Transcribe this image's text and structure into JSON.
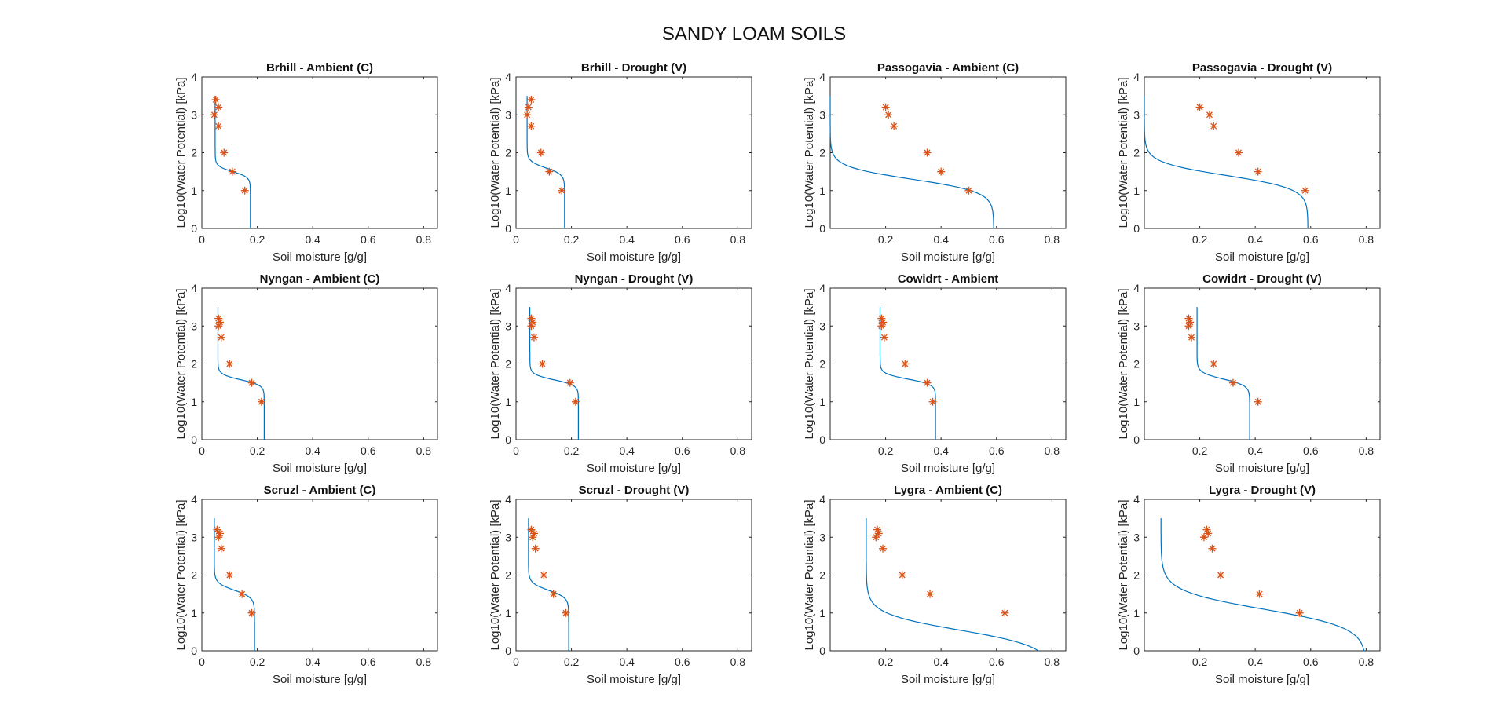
{
  "figure": {
    "title": "SANDY LOAM SOILS"
  },
  "style": {
    "fit_color": "#0072BD",
    "obs_color": "#D95319",
    "obs_marker": "asterisk",
    "grid": false
  },
  "chart_data": [
    {
      "type": "scatter",
      "title": "Brhill - Ambient (C)",
      "xlabel": "Soil moisture [g/g]",
      "ylabel": "Log10(Water Potential) [kPa]",
      "xlim": [
        0,
        0.85
      ],
      "ylim": [
        0,
        4
      ],
      "xticks": [
        "0",
        "0.2",
        "0.4",
        "0.6",
        "0.8"
      ],
      "yticks": [
        "0",
        "1",
        "2",
        "3",
        "4"
      ],
      "fit": {
        "theta_r": 0.048,
        "theta_s": 0.175,
        "h0": 1.5,
        "n": 6
      },
      "observed": {
        "x": [
          0.05,
          0.06,
          0.045,
          0.06,
          0.08,
          0.11,
          0.155
        ],
        "y": [
          3.4,
          3.2,
          3.0,
          2.7,
          2.0,
          1.5,
          1.0
        ]
      }
    },
    {
      "type": "scatter",
      "title": "Brhill - Drought (V)",
      "xlabel": "Soil moisture [g/g]",
      "ylabel": "Log10(Water Potential) [kPa]",
      "xlim": [
        0,
        0.85
      ],
      "ylim": [
        0,
        4
      ],
      "xticks": [
        "0",
        "0.2",
        "0.4",
        "0.6",
        "0.8"
      ],
      "yticks": [
        "0",
        "1",
        "2",
        "3",
        "4"
      ],
      "fit": {
        "theta_r": 0.04,
        "theta_s": 0.175,
        "h0": 1.6,
        "n": 5
      },
      "observed": {
        "x": [
          0.055,
          0.045,
          0.04,
          0.055,
          0.09,
          0.12,
          0.165
        ],
        "y": [
          3.4,
          3.2,
          3.0,
          2.7,
          2.0,
          1.5,
          1.0
        ]
      }
    },
    {
      "type": "scatter",
      "title": "Passogavia - Ambient (C)",
      "xlabel": "Soil moisture [g/g]",
      "ylabel": "Log10(Water Potential) [kPa]",
      "xlim": [
        0,
        0.85
      ],
      "ylim": [
        0,
        4
      ],
      "xticks": [
        "0.2",
        "0.4",
        "0.6",
        "0.8"
      ],
      "yticks": [
        "0",
        "1",
        "2",
        "3",
        "4"
      ],
      "fit": {
        "theta_r": 0.0,
        "theta_s": 0.59,
        "h0": 1.3,
        "n": 2.6
      },
      "observed": {
        "x": [
          0.2,
          0.21,
          0.23,
          0.35,
          0.4,
          0.5
        ],
        "y": [
          3.2,
          3.0,
          2.7,
          2.0,
          1.5,
          1.0
        ]
      }
    },
    {
      "type": "scatter",
      "title": "Passogavia - Drought (V)",
      "xlabel": "Soil moisture [g/g]",
      "ylabel": "Log10(Water Potential) [kPa]",
      "xlim": [
        0,
        0.85
      ],
      "ylim": [
        0,
        4
      ],
      "xticks": [
        "0.2",
        "0.4",
        "0.6",
        "0.8"
      ],
      "yticks": [
        "0",
        "1",
        "2",
        "3",
        "4"
      ],
      "fit": {
        "theta_r": 0.0,
        "theta_s": 0.59,
        "h0": 1.4,
        "n": 2.5
      },
      "observed": {
        "x": [
          0.2,
          0.235,
          0.25,
          0.34,
          0.41,
          0.58
        ],
        "y": [
          3.2,
          3.0,
          2.7,
          2.0,
          1.5,
          1.0
        ]
      }
    },
    {
      "type": "scatter",
      "title": "Nyngan - Ambient (C)",
      "xlabel": "Soil moisture [g/g]",
      "ylabel": "Log10(Water Potential) [kPa]",
      "xlim": [
        0,
        0.85
      ],
      "ylim": [
        0,
        4
      ],
      "xticks": [
        "0",
        "0.2",
        "0.4",
        "0.6",
        "0.8"
      ],
      "yticks": [
        "0",
        "1",
        "2",
        "3",
        "4"
      ],
      "fit": {
        "theta_r": 0.058,
        "theta_s": 0.225,
        "h0": 1.58,
        "n": 6
      },
      "observed": {
        "x": [
          0.06,
          0.065,
          0.06,
          0.07,
          0.1,
          0.18,
          0.215
        ],
        "y": [
          3.2,
          3.1,
          3.0,
          2.7,
          2.0,
          1.5,
          1.0
        ]
      }
    },
    {
      "type": "scatter",
      "title": "Nyngan - Drought (V)",
      "xlabel": "Soil moisture [g/g]",
      "ylabel": "Log10(Water Potential) [kPa]",
      "xlim": [
        0,
        0.85
      ],
      "ylim": [
        0,
        4
      ],
      "xticks": [
        "0",
        "0.2",
        "0.4",
        "0.6",
        "0.8"
      ],
      "yticks": [
        "0",
        "1",
        "2",
        "3",
        "4"
      ],
      "fit": {
        "theta_r": 0.05,
        "theta_s": 0.225,
        "h0": 1.58,
        "n": 6
      },
      "observed": {
        "x": [
          0.055,
          0.06,
          0.055,
          0.065,
          0.095,
          0.195,
          0.215
        ],
        "y": [
          3.2,
          3.1,
          3.0,
          2.7,
          2.0,
          1.5,
          1.0
        ]
      }
    },
    {
      "type": "scatter",
      "title": "Cowidrt - Ambient",
      "xlabel": "Soil moisture [g/g]",
      "ylabel": "Log10(Water Potential) [kPa]",
      "xlim": [
        0,
        0.85
      ],
      "ylim": [
        0,
        4
      ],
      "xticks": [
        "0.2",
        "0.4",
        "0.6",
        "0.8"
      ],
      "yticks": [
        "0",
        "1",
        "2",
        "3",
        "4"
      ],
      "fit": {
        "theta_r": 0.18,
        "theta_s": 0.38,
        "h0": 1.6,
        "n": 6
      },
      "observed": {
        "x": [
          0.185,
          0.19,
          0.185,
          0.195,
          0.27,
          0.35,
          0.37
        ],
        "y": [
          3.2,
          3.1,
          3.0,
          2.7,
          2.0,
          1.5,
          1.0
        ]
      }
    },
    {
      "type": "scatter",
      "title": "Cowidrt - Drought (V)",
      "xlabel": "Soil moisture [g/g]",
      "ylabel": "Log10(Water Potential) [kPa]",
      "xlim": [
        0,
        0.85
      ],
      "ylim": [
        0,
        4
      ],
      "xticks": [
        "0.2",
        "0.4",
        "0.6",
        "0.8"
      ],
      "yticks": [
        "0",
        "1",
        "2",
        "3",
        "4"
      ],
      "fit": {
        "theta_r": 0.19,
        "theta_s": 0.38,
        "h0": 1.6,
        "n": 5
      },
      "observed": {
        "x": [
          0.16,
          0.165,
          0.16,
          0.17,
          0.25,
          0.32,
          0.41
        ],
        "y": [
          3.2,
          3.1,
          3.0,
          2.7,
          2.0,
          1.5,
          1.0
        ]
      }
    },
    {
      "type": "scatter",
      "title": "Scruzl - Ambient (C)",
      "xlabel": "Soil moisture [g/g]",
      "ylabel": "Log10(Water Potential) [kPa]",
      "xlim": [
        0,
        0.85
      ],
      "ylim": [
        0,
        4
      ],
      "xticks": [
        "0",
        "0.2",
        "0.4",
        "0.6",
        "0.8"
      ],
      "yticks": [
        "0",
        "1",
        "2",
        "3",
        "4"
      ],
      "fit": {
        "theta_r": 0.045,
        "theta_s": 0.19,
        "h0": 1.6,
        "n": 4.5
      },
      "observed": {
        "x": [
          0.055,
          0.065,
          0.06,
          0.07,
          0.1,
          0.145,
          0.18
        ],
        "y": [
          3.2,
          3.1,
          3.0,
          2.7,
          2.0,
          1.5,
          1.0
        ]
      }
    },
    {
      "type": "scatter",
      "title": "Scruzl - Drought (V)",
      "xlabel": "Soil moisture [g/g]",
      "ylabel": "Log10(Water Potential) [kPa]",
      "xlim": [
        0,
        0.85
      ],
      "ylim": [
        0,
        4
      ],
      "xticks": [
        "0",
        "0.2",
        "0.4",
        "0.6",
        "0.8"
      ],
      "yticks": [
        "0",
        "1",
        "2",
        "3",
        "4"
      ],
      "fit": {
        "theta_r": 0.045,
        "theta_s": 0.19,
        "h0": 1.6,
        "n": 4.5
      },
      "observed": {
        "x": [
          0.055,
          0.065,
          0.06,
          0.07,
          0.1,
          0.135,
          0.18
        ],
        "y": [
          3.2,
          3.1,
          3.0,
          2.7,
          2.0,
          1.5,
          1.0
        ]
      }
    },
    {
      "type": "scatter",
      "title": "Lygra - Ambient (C)",
      "xlabel": "Soil moisture [g/g]",
      "ylabel": "Log10(Water Potential) [kPa]",
      "xlim": [
        0,
        0.85
      ],
      "ylim": [
        0,
        4
      ],
      "xticks": [
        "0.2",
        "0.4",
        "0.6",
        "0.8"
      ],
      "yticks": [
        "0",
        "1",
        "2",
        "3",
        "4"
      ],
      "fit": {
        "theta_r": 0.13,
        "theta_s": 0.8,
        "h0": 0.55,
        "n": 2.0
      },
      "observed": {
        "x": [
          0.17,
          0.175,
          0.165,
          0.19,
          0.26,
          0.36,
          0.63
        ],
        "y": [
          3.2,
          3.1,
          3.0,
          2.7,
          2.0,
          1.5,
          1.0
        ]
      }
    },
    {
      "type": "scatter",
      "title": "Lygra - Drought (V)",
      "xlabel": "Soil moisture [g/g]",
      "ylabel": "Log10(Water Potential) [kPa]",
      "xlim": [
        0,
        0.85
      ],
      "ylim": [
        0,
        4
      ],
      "xticks": [
        "0.2",
        "0.4",
        "0.6",
        "0.8"
      ],
      "yticks": [
        "0",
        "1",
        "2",
        "3",
        "4"
      ],
      "fit": {
        "theta_r": 0.06,
        "theta_s": 0.8,
        "h0": 1.1,
        "n": 1.8
      },
      "observed": {
        "x": [
          0.225,
          0.23,
          0.215,
          0.245,
          0.275,
          0.415,
          0.56
        ],
        "y": [
          3.2,
          3.1,
          3.0,
          2.7,
          2.0,
          1.5,
          1.0
        ]
      }
    }
  ]
}
